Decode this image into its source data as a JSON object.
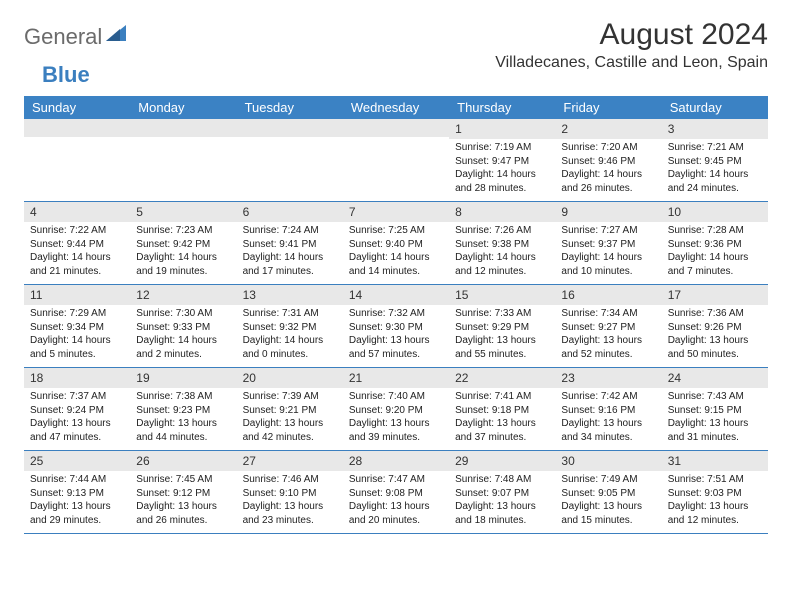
{
  "logo": {
    "word1": "General",
    "word2": "Blue"
  },
  "title": "August 2024",
  "location": "Villadecanes, Castille and Leon, Spain",
  "colors": {
    "header_bg": "#3b82c4",
    "header_text": "#ffffff",
    "daynum_bg": "#e8e8e8",
    "row_border": "#3b7fbf",
    "logo_gray": "#6b6b6b",
    "logo_blue": "#3b7fbf",
    "background": "#ffffff"
  },
  "daysOfWeek": [
    "Sunday",
    "Monday",
    "Tuesday",
    "Wednesday",
    "Thursday",
    "Friday",
    "Saturday"
  ],
  "weeks": [
    [
      {
        "n": "",
        "sunrise": "",
        "sunset": "",
        "daylight": ""
      },
      {
        "n": "",
        "sunrise": "",
        "sunset": "",
        "daylight": ""
      },
      {
        "n": "",
        "sunrise": "",
        "sunset": "",
        "daylight": ""
      },
      {
        "n": "",
        "sunrise": "",
        "sunset": "",
        "daylight": ""
      },
      {
        "n": "1",
        "sunrise": "7:19 AM",
        "sunset": "9:47 PM",
        "daylight": "14 hours and 28 minutes."
      },
      {
        "n": "2",
        "sunrise": "7:20 AM",
        "sunset": "9:46 PM",
        "daylight": "14 hours and 26 minutes."
      },
      {
        "n": "3",
        "sunrise": "7:21 AM",
        "sunset": "9:45 PM",
        "daylight": "14 hours and 24 minutes."
      }
    ],
    [
      {
        "n": "4",
        "sunrise": "7:22 AM",
        "sunset": "9:44 PM",
        "daylight": "14 hours and 21 minutes."
      },
      {
        "n": "5",
        "sunrise": "7:23 AM",
        "sunset": "9:42 PM",
        "daylight": "14 hours and 19 minutes."
      },
      {
        "n": "6",
        "sunrise": "7:24 AM",
        "sunset": "9:41 PM",
        "daylight": "14 hours and 17 minutes."
      },
      {
        "n": "7",
        "sunrise": "7:25 AM",
        "sunset": "9:40 PM",
        "daylight": "14 hours and 14 minutes."
      },
      {
        "n": "8",
        "sunrise": "7:26 AM",
        "sunset": "9:38 PM",
        "daylight": "14 hours and 12 minutes."
      },
      {
        "n": "9",
        "sunrise": "7:27 AM",
        "sunset": "9:37 PM",
        "daylight": "14 hours and 10 minutes."
      },
      {
        "n": "10",
        "sunrise": "7:28 AM",
        "sunset": "9:36 PM",
        "daylight": "14 hours and 7 minutes."
      }
    ],
    [
      {
        "n": "11",
        "sunrise": "7:29 AM",
        "sunset": "9:34 PM",
        "daylight": "14 hours and 5 minutes."
      },
      {
        "n": "12",
        "sunrise": "7:30 AM",
        "sunset": "9:33 PM",
        "daylight": "14 hours and 2 minutes."
      },
      {
        "n": "13",
        "sunrise": "7:31 AM",
        "sunset": "9:32 PM",
        "daylight": "14 hours and 0 minutes."
      },
      {
        "n": "14",
        "sunrise": "7:32 AM",
        "sunset": "9:30 PM",
        "daylight": "13 hours and 57 minutes."
      },
      {
        "n": "15",
        "sunrise": "7:33 AM",
        "sunset": "9:29 PM",
        "daylight": "13 hours and 55 minutes."
      },
      {
        "n": "16",
        "sunrise": "7:34 AM",
        "sunset": "9:27 PM",
        "daylight": "13 hours and 52 minutes."
      },
      {
        "n": "17",
        "sunrise": "7:36 AM",
        "sunset": "9:26 PM",
        "daylight": "13 hours and 50 minutes."
      }
    ],
    [
      {
        "n": "18",
        "sunrise": "7:37 AM",
        "sunset": "9:24 PM",
        "daylight": "13 hours and 47 minutes."
      },
      {
        "n": "19",
        "sunrise": "7:38 AM",
        "sunset": "9:23 PM",
        "daylight": "13 hours and 44 minutes."
      },
      {
        "n": "20",
        "sunrise": "7:39 AM",
        "sunset": "9:21 PM",
        "daylight": "13 hours and 42 minutes."
      },
      {
        "n": "21",
        "sunrise": "7:40 AM",
        "sunset": "9:20 PM",
        "daylight": "13 hours and 39 minutes."
      },
      {
        "n": "22",
        "sunrise": "7:41 AM",
        "sunset": "9:18 PM",
        "daylight": "13 hours and 37 minutes."
      },
      {
        "n": "23",
        "sunrise": "7:42 AM",
        "sunset": "9:16 PM",
        "daylight": "13 hours and 34 minutes."
      },
      {
        "n": "24",
        "sunrise": "7:43 AM",
        "sunset": "9:15 PM",
        "daylight": "13 hours and 31 minutes."
      }
    ],
    [
      {
        "n": "25",
        "sunrise": "7:44 AM",
        "sunset": "9:13 PM",
        "daylight": "13 hours and 29 minutes."
      },
      {
        "n": "26",
        "sunrise": "7:45 AM",
        "sunset": "9:12 PM",
        "daylight": "13 hours and 26 minutes."
      },
      {
        "n": "27",
        "sunrise": "7:46 AM",
        "sunset": "9:10 PM",
        "daylight": "13 hours and 23 minutes."
      },
      {
        "n": "28",
        "sunrise": "7:47 AM",
        "sunset": "9:08 PM",
        "daylight": "13 hours and 20 minutes."
      },
      {
        "n": "29",
        "sunrise": "7:48 AM",
        "sunset": "9:07 PM",
        "daylight": "13 hours and 18 minutes."
      },
      {
        "n": "30",
        "sunrise": "7:49 AM",
        "sunset": "9:05 PM",
        "daylight": "13 hours and 15 minutes."
      },
      {
        "n": "31",
        "sunrise": "7:51 AM",
        "sunset": "9:03 PM",
        "daylight": "13 hours and 12 minutes."
      }
    ]
  ],
  "labels": {
    "sunrise": "Sunrise:",
    "sunset": "Sunset:",
    "daylight": "Daylight:"
  }
}
